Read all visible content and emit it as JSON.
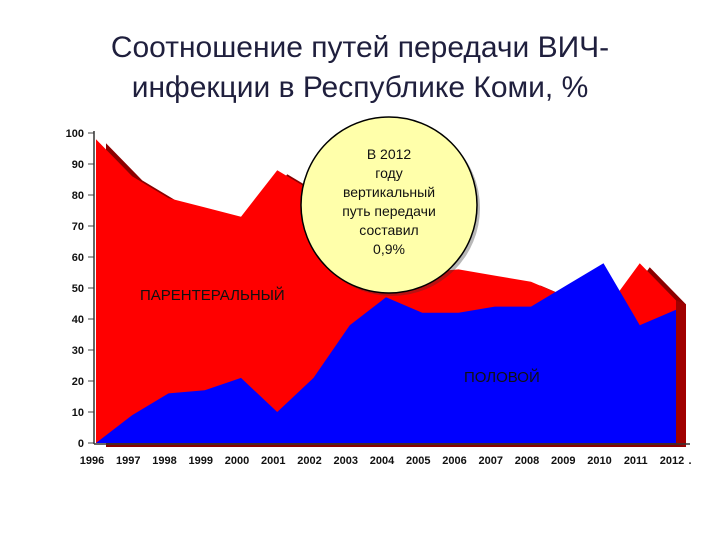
{
  "title": {
    "line1": "Соотношение путей передачи ВИЧ-",
    "line2": "инфекции в Республике Коми, %"
  },
  "chart_data": {
    "type": "area",
    "x": [
      "1996",
      "1997",
      "1998",
      "1999",
      "2000",
      "2001",
      "2002",
      "2003",
      "2004",
      "2005",
      "2006",
      "2007",
      "2008",
      "2009",
      "2010",
      "2011",
      "2012"
    ],
    "y_ticks": [
      0,
      10,
      20,
      30,
      40,
      50,
      60,
      70,
      80,
      90,
      100
    ],
    "ylim": [
      0,
      100
    ],
    "series": [
      {
        "name": "ПАРЕНТЕРАЛЬНЫЙ",
        "color": "#ff0000",
        "values": [
          98,
          86,
          79,
          76,
          73,
          88,
          81,
          69,
          57,
          55,
          56,
          54,
          52,
          47,
          42,
          58,
          46
        ]
      },
      {
        "name": "ПОЛОВОЙ",
        "color": "#0000ff",
        "values": [
          0,
          9,
          16,
          17,
          21,
          10,
          21,
          38,
          47,
          42,
          42,
          44,
          44,
          51,
          58,
          38,
          43
        ]
      }
    ],
    "annotation": [
      "В 2012",
      "году",
      "вертикальный",
      "путь передачи",
      "составил",
      "0,9%"
    ],
    "trailing_tick": "."
  }
}
